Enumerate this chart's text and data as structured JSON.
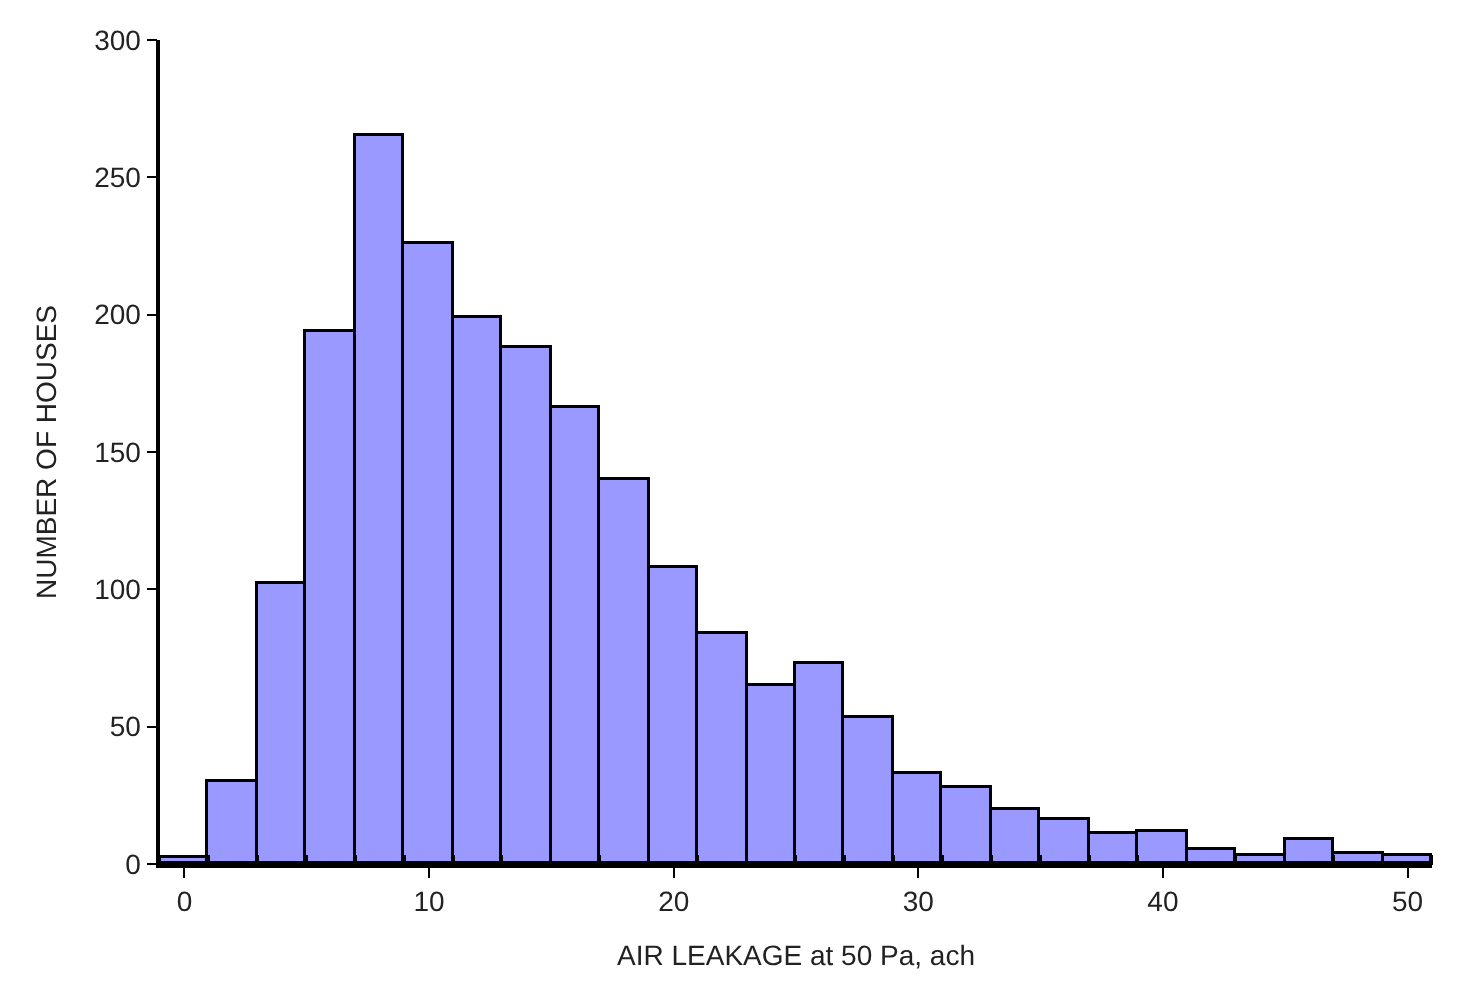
{
  "chart_data": {
    "type": "histogram",
    "xlabel": "AIR LEAKAGE at 50 Pa, ach",
    "ylabel": "NUMBER OF HOUSES",
    "bins": [
      -1,
      1,
      3,
      5,
      7,
      9,
      11,
      13,
      15,
      17,
      19,
      21,
      23,
      25,
      27,
      29,
      31,
      33,
      35,
      37,
      39,
      41,
      43,
      45,
      47,
      49,
      51
    ],
    "values": [
      2,
      30,
      102,
      194,
      265,
      226,
      199,
      188,
      166,
      140,
      108,
      84,
      65,
      73,
      53,
      33,
      28,
      20,
      16,
      11,
      12,
      5,
      3,
      9,
      4,
      3
    ],
    "color": "#9999ff",
    "xlim": [
      -1,
      51
    ],
    "xticks": [
      0,
      10,
      20,
      30,
      40,
      50
    ],
    "ylim": [
      0,
      300
    ],
    "yticks": [
      0,
      50,
      100,
      150,
      200,
      250,
      300
    ]
  }
}
